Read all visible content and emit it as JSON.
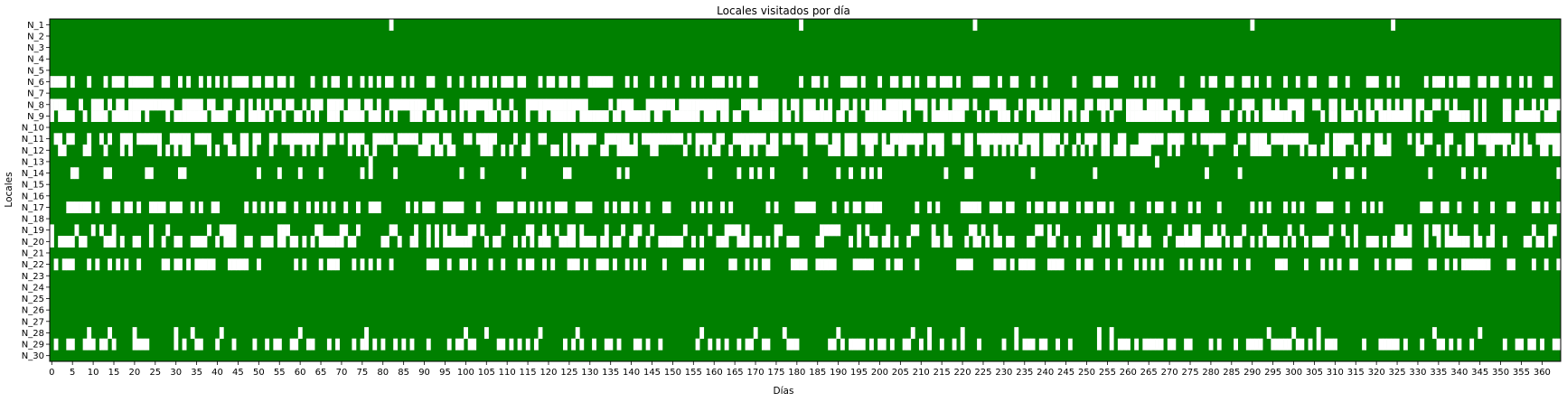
{
  "chart_data": {
    "type": "heatmap",
    "title": "Locales visitados por día",
    "xlabel": "Días",
    "ylabel": "Locales",
    "x_range": [
      0,
      364
    ],
    "x_tick_step": 5,
    "x_ticks": [
      0,
      5,
      10,
      15,
      20,
      25,
      30,
      35,
      40,
      45,
      50,
      55,
      60,
      65,
      70,
      75,
      80,
      85,
      90,
      95,
      100,
      105,
      110,
      115,
      120,
      125,
      130,
      135,
      140,
      145,
      150,
      155,
      160,
      165,
      170,
      175,
      180,
      185,
      190,
      195,
      200,
      205,
      210,
      215,
      220,
      225,
      230,
      235,
      240,
      245,
      250,
      255,
      260,
      265,
      270,
      275,
      280,
      285,
      290,
      295,
      300,
      305,
      310,
      315,
      320,
      325,
      330,
      335,
      340,
      345,
      350,
      355,
      360
    ],
    "rows": [
      "N_1",
      "N_2",
      "N_3",
      "N_4",
      "N_5",
      "N_6",
      "N_7",
      "N_8",
      "N_9",
      "N_10",
      "N_11",
      "N_12",
      "N_13",
      "N_14",
      "N_15",
      "N_16",
      "N_17",
      "N_18",
      "N_19",
      "N_20",
      "N_21",
      "N_22",
      "N_23",
      "N_24",
      "N_25",
      "N_26",
      "N_27",
      "N_28",
      "N_29",
      "N_30"
    ],
    "colors": {
      "visited": "#008000",
      "not_visited": "#ffffff"
    },
    "value_legend": "green = visited (1), white = not visited (0)",
    "row_patterns": {
      "N_1": {
        "not_visited_days": [
          82,
          181,
          223,
          290,
          324
        ]
      },
      "N_2": {
        "not_visited_days": []
      },
      "N_3": {
        "not_visited_days": []
      },
      "N_4": {
        "not_visited_days": []
      },
      "N_5": {
        "not_visited_days": []
      },
      "N_6": {
        "approx_visit_rate": 0.55
      },
      "N_7": {
        "not_visited_days": []
      },
      "N_8": {
        "approx_visit_rate": 0.4
      },
      "N_9": {
        "approx_visit_rate": 0.35
      },
      "N_10": {
        "not_visited_days": []
      },
      "N_11": {
        "approx_visit_rate": 0.35
      },
      "N_12": {
        "approx_visit_rate": 0.55
      },
      "N_13": {
        "not_visited_days": [
          77,
          267
        ]
      },
      "N_14": {
        "approx_visit_rate": 0.85
      },
      "N_15": {
        "not_visited_days": []
      },
      "N_16": {
        "not_visited_days": []
      },
      "N_17": {
        "approx_visit_rate": 0.5
      },
      "N_18": {
        "not_visited_days": []
      },
      "N_19": {
        "approx_visit_rate": 0.7
      },
      "N_20": {
        "approx_visit_rate": 0.45
      },
      "N_21": {
        "not_visited_days": []
      },
      "N_22": {
        "approx_visit_rate": 0.55
      },
      "N_23": {
        "not_visited_days": []
      },
      "N_24": {
        "not_visited_days": []
      },
      "N_25": {
        "not_visited_days": []
      },
      "N_26": {
        "not_visited_days": []
      },
      "N_27": {
        "not_visited_days": []
      },
      "N_28": {
        "not_visited_days": [
          9,
          14,
          20,
          30,
          34,
          41,
          60,
          76,
          100,
          105,
          118,
          127,
          157,
          170,
          177,
          190,
          208,
          212,
          220,
          233,
          253,
          256,
          294,
          300,
          306,
          334,
          345
        ]
      },
      "N_29": {
        "approx_visit_rate": 0.55
      },
      "N_30": {
        "not_visited_days": []
      }
    }
  }
}
